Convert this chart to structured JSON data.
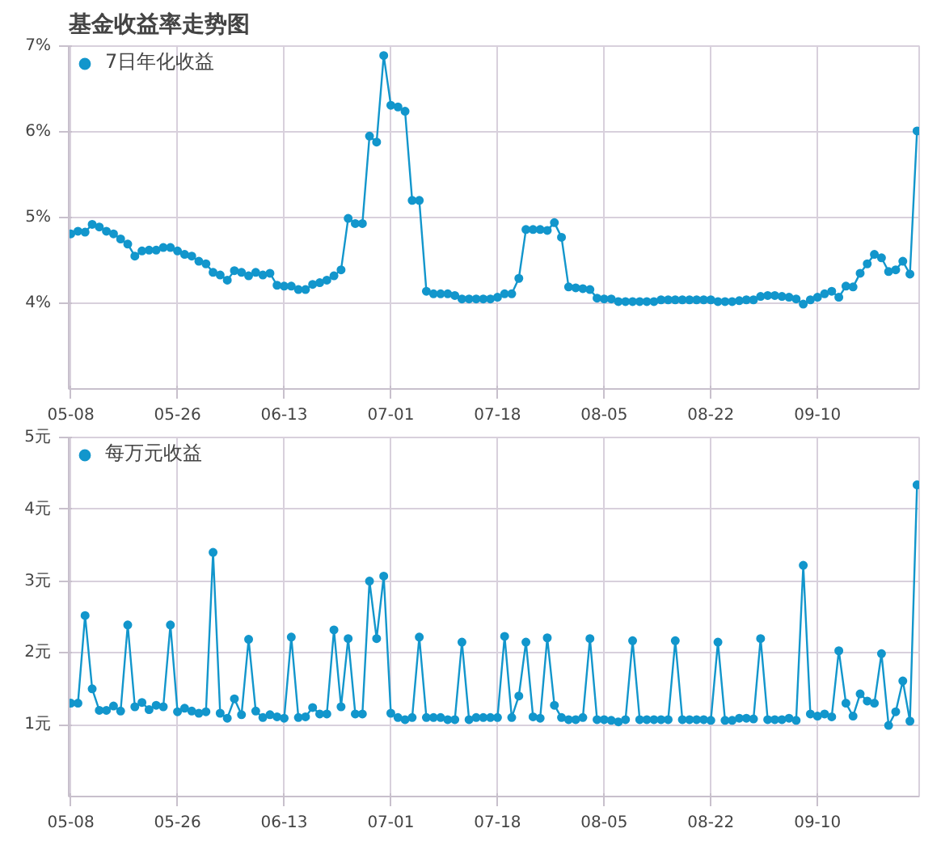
{
  "chart_data": [
    {
      "type": "line",
      "title": "基金收益率走势图",
      "legend": "top left",
      "grid": true,
      "marker": "circle",
      "line_style": "solid",
      "categories": [
        "05-08",
        null,
        null,
        null,
        null,
        null,
        null,
        null,
        null,
        null,
        null,
        null,
        null,
        null,
        null,
        "05-26",
        null,
        null,
        null,
        null,
        null,
        null,
        null,
        null,
        null,
        null,
        null,
        null,
        null,
        null,
        "06-13",
        null,
        null,
        null,
        null,
        null,
        null,
        null,
        null,
        null,
        null,
        null,
        null,
        null,
        null,
        "07-01",
        null,
        null,
        null,
        null,
        null,
        null,
        null,
        null,
        null,
        null,
        null,
        null,
        null,
        null,
        "07-18",
        null,
        null,
        null,
        null,
        null,
        null,
        null,
        null,
        null,
        null,
        null,
        null,
        null,
        null,
        "08-05",
        null,
        null,
        null,
        null,
        null,
        null,
        null,
        null,
        null,
        null,
        null,
        null,
        null,
        null,
        "08-22",
        null,
        null,
        null,
        null,
        null,
        null,
        null,
        null,
        null,
        null,
        null,
        null,
        null,
        null,
        "09-10",
        null,
        null,
        null,
        null,
        null,
        null,
        null,
        null,
        null,
        null,
        null,
        null,
        null,
        null
      ],
      "ylim": [
        3,
        7
      ],
      "yticks": [
        {
          "value": 4,
          "label": "4%"
        },
        {
          "value": 5,
          "label": "5%"
        },
        {
          "value": 6,
          "label": "6%"
        },
        {
          "value": 7,
          "label": "7%"
        }
      ],
      "series": [
        {
          "name": "7日年化收益",
          "color": "#1296cc",
          "values": [
            4.81,
            4.84,
            4.83,
            4.92,
            4.89,
            4.84,
            4.81,
            4.75,
            4.69,
            4.55,
            4.61,
            4.62,
            4.62,
            4.65,
            4.65,
            4.61,
            4.57,
            4.55,
            4.49,
            4.46,
            4.36,
            4.33,
            4.27,
            4.38,
            4.36,
            4.32,
            4.36,
            4.33,
            4.35,
            4.21,
            4.2,
            4.2,
            4.16,
            4.16,
            4.22,
            4.24,
            4.27,
            4.32,
            4.39,
            4.99,
            4.93,
            4.93,
            5.95,
            5.88,
            6.89,
            6.31,
            6.29,
            6.24,
            5.2,
            5.2,
            4.14,
            4.11,
            4.11,
            4.11,
            4.09,
            4.05,
            4.05,
            4.05,
            4.05,
            4.05,
            4.07,
            4.11,
            4.11,
            4.29,
            4.86,
            4.86,
            4.86,
            4.85,
            4.94,
            4.77,
            4.19,
            4.18,
            4.17,
            4.16,
            4.06,
            4.05,
            4.05,
            4.02,
            4.02,
            4.02,
            4.02,
            4.02,
            4.02,
            4.04,
            4.04,
            4.04,
            4.04,
            4.04,
            4.04,
            4.04,
            4.04,
            4.02,
            4.02,
            4.02,
            4.03,
            4.04,
            4.04,
            4.08,
            4.09,
            4.09,
            4.08,
            4.07,
            4.05,
            3.99,
            4.04,
            4.07,
            4.11,
            4.14,
            4.07,
            4.2,
            4.19,
            4.35,
            4.46,
            4.57,
            4.53,
            4.37,
            4.39,
            4.49,
            4.34,
            6.01
          ]
        }
      ]
    },
    {
      "type": "line",
      "legend": "top left",
      "grid": true,
      "marker": "circle",
      "line_style": "solid",
      "categories": [
        "05-08",
        null,
        null,
        null,
        null,
        null,
        null,
        null,
        null,
        null,
        null,
        null,
        null,
        null,
        null,
        "05-26",
        null,
        null,
        null,
        null,
        null,
        null,
        null,
        null,
        null,
        null,
        null,
        null,
        null,
        null,
        "06-13",
        null,
        null,
        null,
        null,
        null,
        null,
        null,
        null,
        null,
        null,
        null,
        null,
        null,
        null,
        "07-01",
        null,
        null,
        null,
        null,
        null,
        null,
        null,
        null,
        null,
        null,
        null,
        null,
        null,
        null,
        "07-18",
        null,
        null,
        null,
        null,
        null,
        null,
        null,
        null,
        null,
        null,
        null,
        null,
        null,
        null,
        "08-05",
        null,
        null,
        null,
        null,
        null,
        null,
        null,
        null,
        null,
        null,
        null,
        null,
        null,
        null,
        "08-22",
        null,
        null,
        null,
        null,
        null,
        null,
        null,
        null,
        null,
        null,
        null,
        null,
        null,
        null,
        "09-10",
        null,
        null,
        null,
        null,
        null,
        null,
        null,
        null,
        null,
        null,
        null,
        null,
        null,
        null
      ],
      "ylim": [
        0,
        5
      ],
      "yticks": [
        {
          "value": 1,
          "label": "1元"
        },
        {
          "value": 2,
          "label": "2元"
        },
        {
          "value": 3,
          "label": "3元"
        },
        {
          "value": 4,
          "label": "4元"
        },
        {
          "value": 5,
          "label": "5元"
        }
      ],
      "series": [
        {
          "name": "每万元收益",
          "color": "#1296cc",
          "values": [
            1.3,
            1.3,
            2.52,
            1.5,
            1.2,
            1.2,
            1.26,
            1.19,
            2.39,
            1.25,
            1.31,
            1.21,
            1.27,
            1.25,
            2.39,
            1.18,
            1.23,
            1.19,
            1.16,
            1.18,
            3.4,
            1.16,
            1.09,
            1.36,
            1.14,
            2.19,
            1.19,
            1.1,
            1.14,
            1.11,
            1.09,
            2.22,
            1.1,
            1.11,
            1.24,
            1.15,
            1.15,
            2.32,
            1.25,
            2.2,
            1.15,
            1.15,
            3.0,
            2.2,
            3.07,
            1.16,
            1.1,
            1.07,
            1.1,
            2.22,
            1.1,
            1.1,
            1.1,
            1.07,
            1.07,
            2.15,
            1.07,
            1.1,
            1.1,
            1.1,
            1.1,
            2.23,
            1.1,
            1.4,
            2.15,
            1.11,
            1.09,
            2.21,
            1.27,
            1.1,
            1.07,
            1.07,
            1.1,
            2.2,
            1.07,
            1.07,
            1.06,
            1.04,
            1.07,
            2.17,
            1.07,
            1.07,
            1.07,
            1.07,
            1.07,
            2.17,
            1.07,
            1.07,
            1.07,
            1.07,
            1.06,
            2.15,
            1.06,
            1.06,
            1.09,
            1.09,
            1.08,
            2.2,
            1.07,
            1.07,
            1.07,
            1.09,
            1.06,
            3.22,
            1.15,
            1.12,
            1.15,
            1.11,
            2.03,
            1.3,
            1.12,
            1.43,
            1.33,
            1.3,
            1.99,
            0.99,
            1.18,
            1.61,
            1.05,
            4.34
          ]
        }
      ]
    }
  ]
}
